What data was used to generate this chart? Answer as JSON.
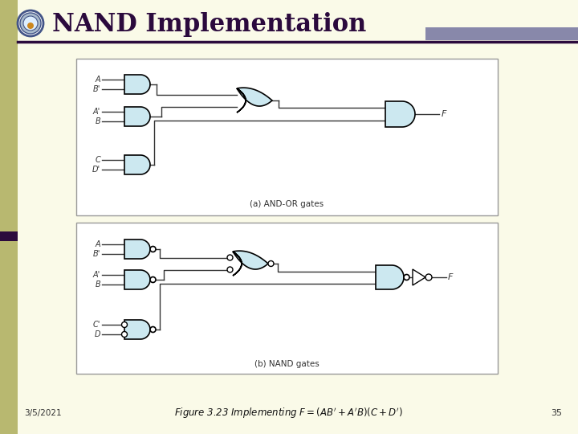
{
  "title": "NAND Implementation",
  "bg_color": "#FAFAE8",
  "left_bar_color": "#B8B870",
  "title_color": "#2B0A3D",
  "header_line_color": "#2B0A3D",
  "header_accent_color": "#8888AA",
  "gate_fill": "#CCE8F0",
  "gate_edge": "#000000",
  "wire_color": "#333333",
  "date_text": "3/5/2021",
  "page_num": "35",
  "caption_a": "(a) AND-OR gates",
  "caption_b": "(b) NAND gates"
}
